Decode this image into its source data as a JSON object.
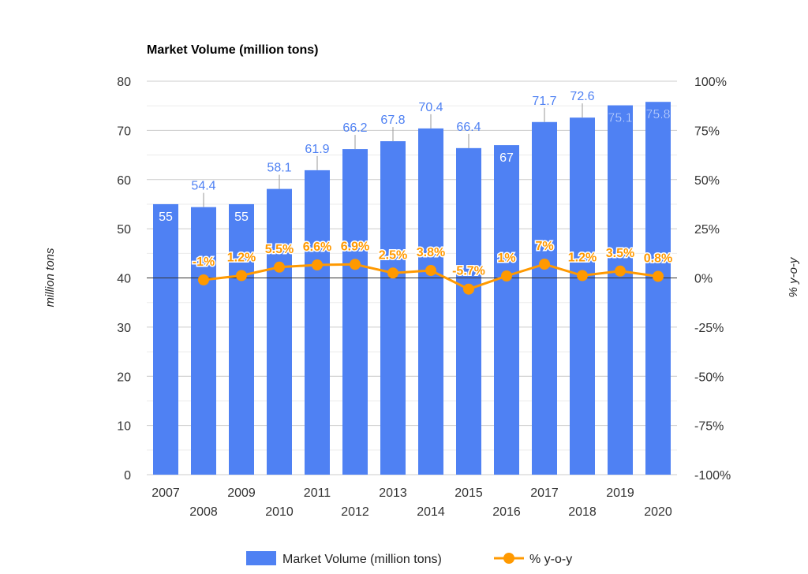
{
  "chart_data": {
    "type": "bar",
    "title": "Market Volume (million tons)",
    "ylabel": "million tons",
    "y2label": "% y-o-y",
    "ylim": [
      0,
      80
    ],
    "y2lim": [
      -100,
      100
    ],
    "yticks": [
      "0",
      "10",
      "20",
      "30",
      "40",
      "50",
      "60",
      "70",
      "80"
    ],
    "y2ticks": [
      "-100%",
      "-75%",
      "-50%",
      "-25%",
      "0%",
      "25%",
      "50%",
      "75%",
      "100%"
    ],
    "categories": [
      "2007",
      "2008",
      "2009",
      "2010",
      "2011",
      "2012",
      "2013",
      "2014",
      "2015",
      "2016",
      "2017",
      "2018",
      "2019",
      "2020"
    ],
    "grid": true,
    "legend_position": "bottom",
    "series": [
      {
        "name": "Market Volume (million tons)",
        "type": "bar",
        "axis": "left",
        "color": "#4f81f3",
        "values": [
          55,
          54.4,
          55,
          58.1,
          61.9,
          66.2,
          67.8,
          70.4,
          66.4,
          67,
          71.7,
          72.6,
          75.1,
          75.8
        ],
        "labels": [
          "55",
          "54.4",
          "55",
          "58.1",
          "61.9",
          "66.2",
          "67.8",
          "70.4",
          "66.4",
          "67",
          "71.7",
          "72.6",
          "75.1",
          "75.8"
        ]
      },
      {
        "name": "% y-o-y",
        "type": "line",
        "axis": "right",
        "color": "#ff9900",
        "values": [
          null,
          -1,
          1.2,
          5.5,
          6.6,
          6.9,
          2.5,
          3.8,
          -5.7,
          1,
          7,
          1.2,
          3.5,
          0.8
        ],
        "labels": [
          "",
          "-1%",
          "1.2%",
          "5.5%",
          "6.6%",
          "6.9%",
          "2.5%",
          "3.8%",
          "-5.7%",
          "1%",
          "7%",
          "1.2%",
          "3.5%",
          "0.8%"
        ]
      }
    ]
  }
}
